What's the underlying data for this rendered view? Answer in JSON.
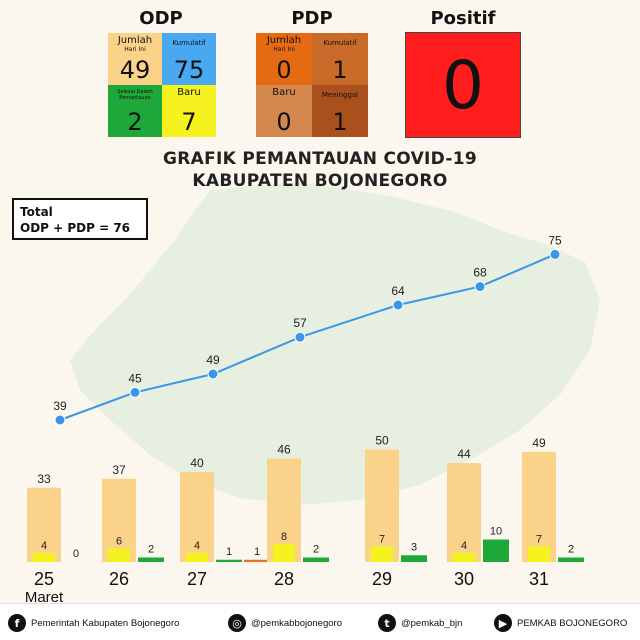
{
  "odp": {
    "title": "ODP",
    "jumlah": {
      "label": "Jumlah",
      "sub": "Hari Ini",
      "value": "49",
      "color": "#fbd28a"
    },
    "kumulatif": {
      "label": "Kumulatif",
      "value": "75",
      "color": "#4aa8f0"
    },
    "selesai": {
      "label": "Selesai Dalam Pemantauan",
      "value": "2",
      "color": "#1fa83a"
    },
    "baru": {
      "label": "Baru",
      "value": "7",
      "color": "#f5f220"
    }
  },
  "pdp": {
    "title": "PDP",
    "jumlah": {
      "label": "Jumlah",
      "sub": "Hari Ini",
      "value": "0",
      "color": "#e46a14"
    },
    "kumulatif": {
      "label": "Kumulatif",
      "value": "1",
      "color": "#c86a28"
    },
    "baru": {
      "label": "Baru",
      "value": "0",
      "color": "#d5884d"
    },
    "meninggal": {
      "label": "Meninggal",
      "value": "1",
      "color": "#a9501c"
    }
  },
  "positif": {
    "title": "Positif",
    "value": "0",
    "color": "#ff1d1d"
  },
  "total": {
    "line1": "Total",
    "line2": "ODP + PDP = 76"
  },
  "footer": {
    "facebook": "Pemerintah Kabupaten Bojonegoro",
    "instagram": "@pemkabbojonegoro",
    "twitter": "@pemkab_bjn",
    "youtube": "PEMKAB BOJONEGORO"
  },
  "chart_data": {
    "type": "bar",
    "title": "GRAFIK PEMANTAUAN COVID-19 KABUPATEN BOJONEGORO",
    "title_lines": [
      "GRAFIK PEMANTAUAN COVID-19",
      "KABUPATEN BOJONEGORO"
    ],
    "categories": [
      "25",
      "26",
      "27",
      "28",
      "29",
      "30",
      "31"
    ],
    "x_sublabel": "Maret",
    "series": [
      {
        "key": "jumlah",
        "values": [
          33,
          37,
          40,
          46,
          50,
          44,
          49
        ],
        "color": "#fbd28a",
        "kind": "bar"
      },
      {
        "key": "baru",
        "values": [
          4,
          6,
          4,
          8,
          7,
          4,
          7
        ],
        "color": "#f5f220",
        "kind": "bar"
      },
      {
        "key": "selesai",
        "values": [
          0,
          2,
          1,
          2,
          3,
          10,
          2
        ],
        "color": "#1fa83a",
        "kind": "bar"
      },
      {
        "key": "pdp",
        "values": [
          null,
          null,
          1,
          null,
          null,
          null,
          null
        ],
        "color": "#e4721e",
        "kind": "bar"
      },
      {
        "key": "kumulatif",
        "values": [
          39,
          45,
          49,
          57,
          64,
          68,
          75
        ],
        "color": "#3b95e8",
        "kind": "line"
      }
    ],
    "ylim": [
      0,
      80
    ],
    "grid": false,
    "legend": "none"
  }
}
